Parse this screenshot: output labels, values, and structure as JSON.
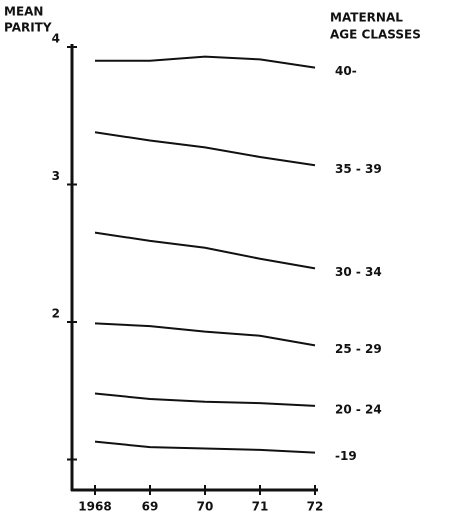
{
  "chart_data": {
    "type": "line",
    "y_label": [
      "MEAN",
      "PARITY"
    ],
    "legend_title": [
      "MATERNAL",
      "AGE CLASSES"
    ],
    "categories": [
      "1968",
      "69",
      "70",
      "71",
      "72"
    ],
    "series": [
      {
        "name": "40-",
        "color": "#111111",
        "values": [
          3.9,
          3.9,
          3.93,
          3.91,
          3.85
        ]
      },
      {
        "name": "35 - 39",
        "color": "#111111",
        "values": [
          3.38,
          3.32,
          3.27,
          3.2,
          3.14
        ]
      },
      {
        "name": "30 - 34",
        "color": "#111111",
        "values": [
          2.65,
          2.59,
          2.54,
          2.46,
          2.39
        ]
      },
      {
        "name": "25 - 29",
        "color": "#111111",
        "values": [
          1.99,
          1.97,
          1.93,
          1.9,
          1.83
        ]
      },
      {
        "name": "20 - 24",
        "color": "#111111",
        "values": [
          1.48,
          1.44,
          1.42,
          1.41,
          1.39
        ]
      },
      {
        "name": "-19",
        "color": "#111111",
        "values": [
          1.13,
          1.09,
          1.08,
          1.07,
          1.05
        ]
      }
    ],
    "ylim": [
      0.8,
      4
    ],
    "yticks": [
      2,
      3,
      4
    ],
    "minor_yticks": [
      1
    ],
    "grid": false
  }
}
